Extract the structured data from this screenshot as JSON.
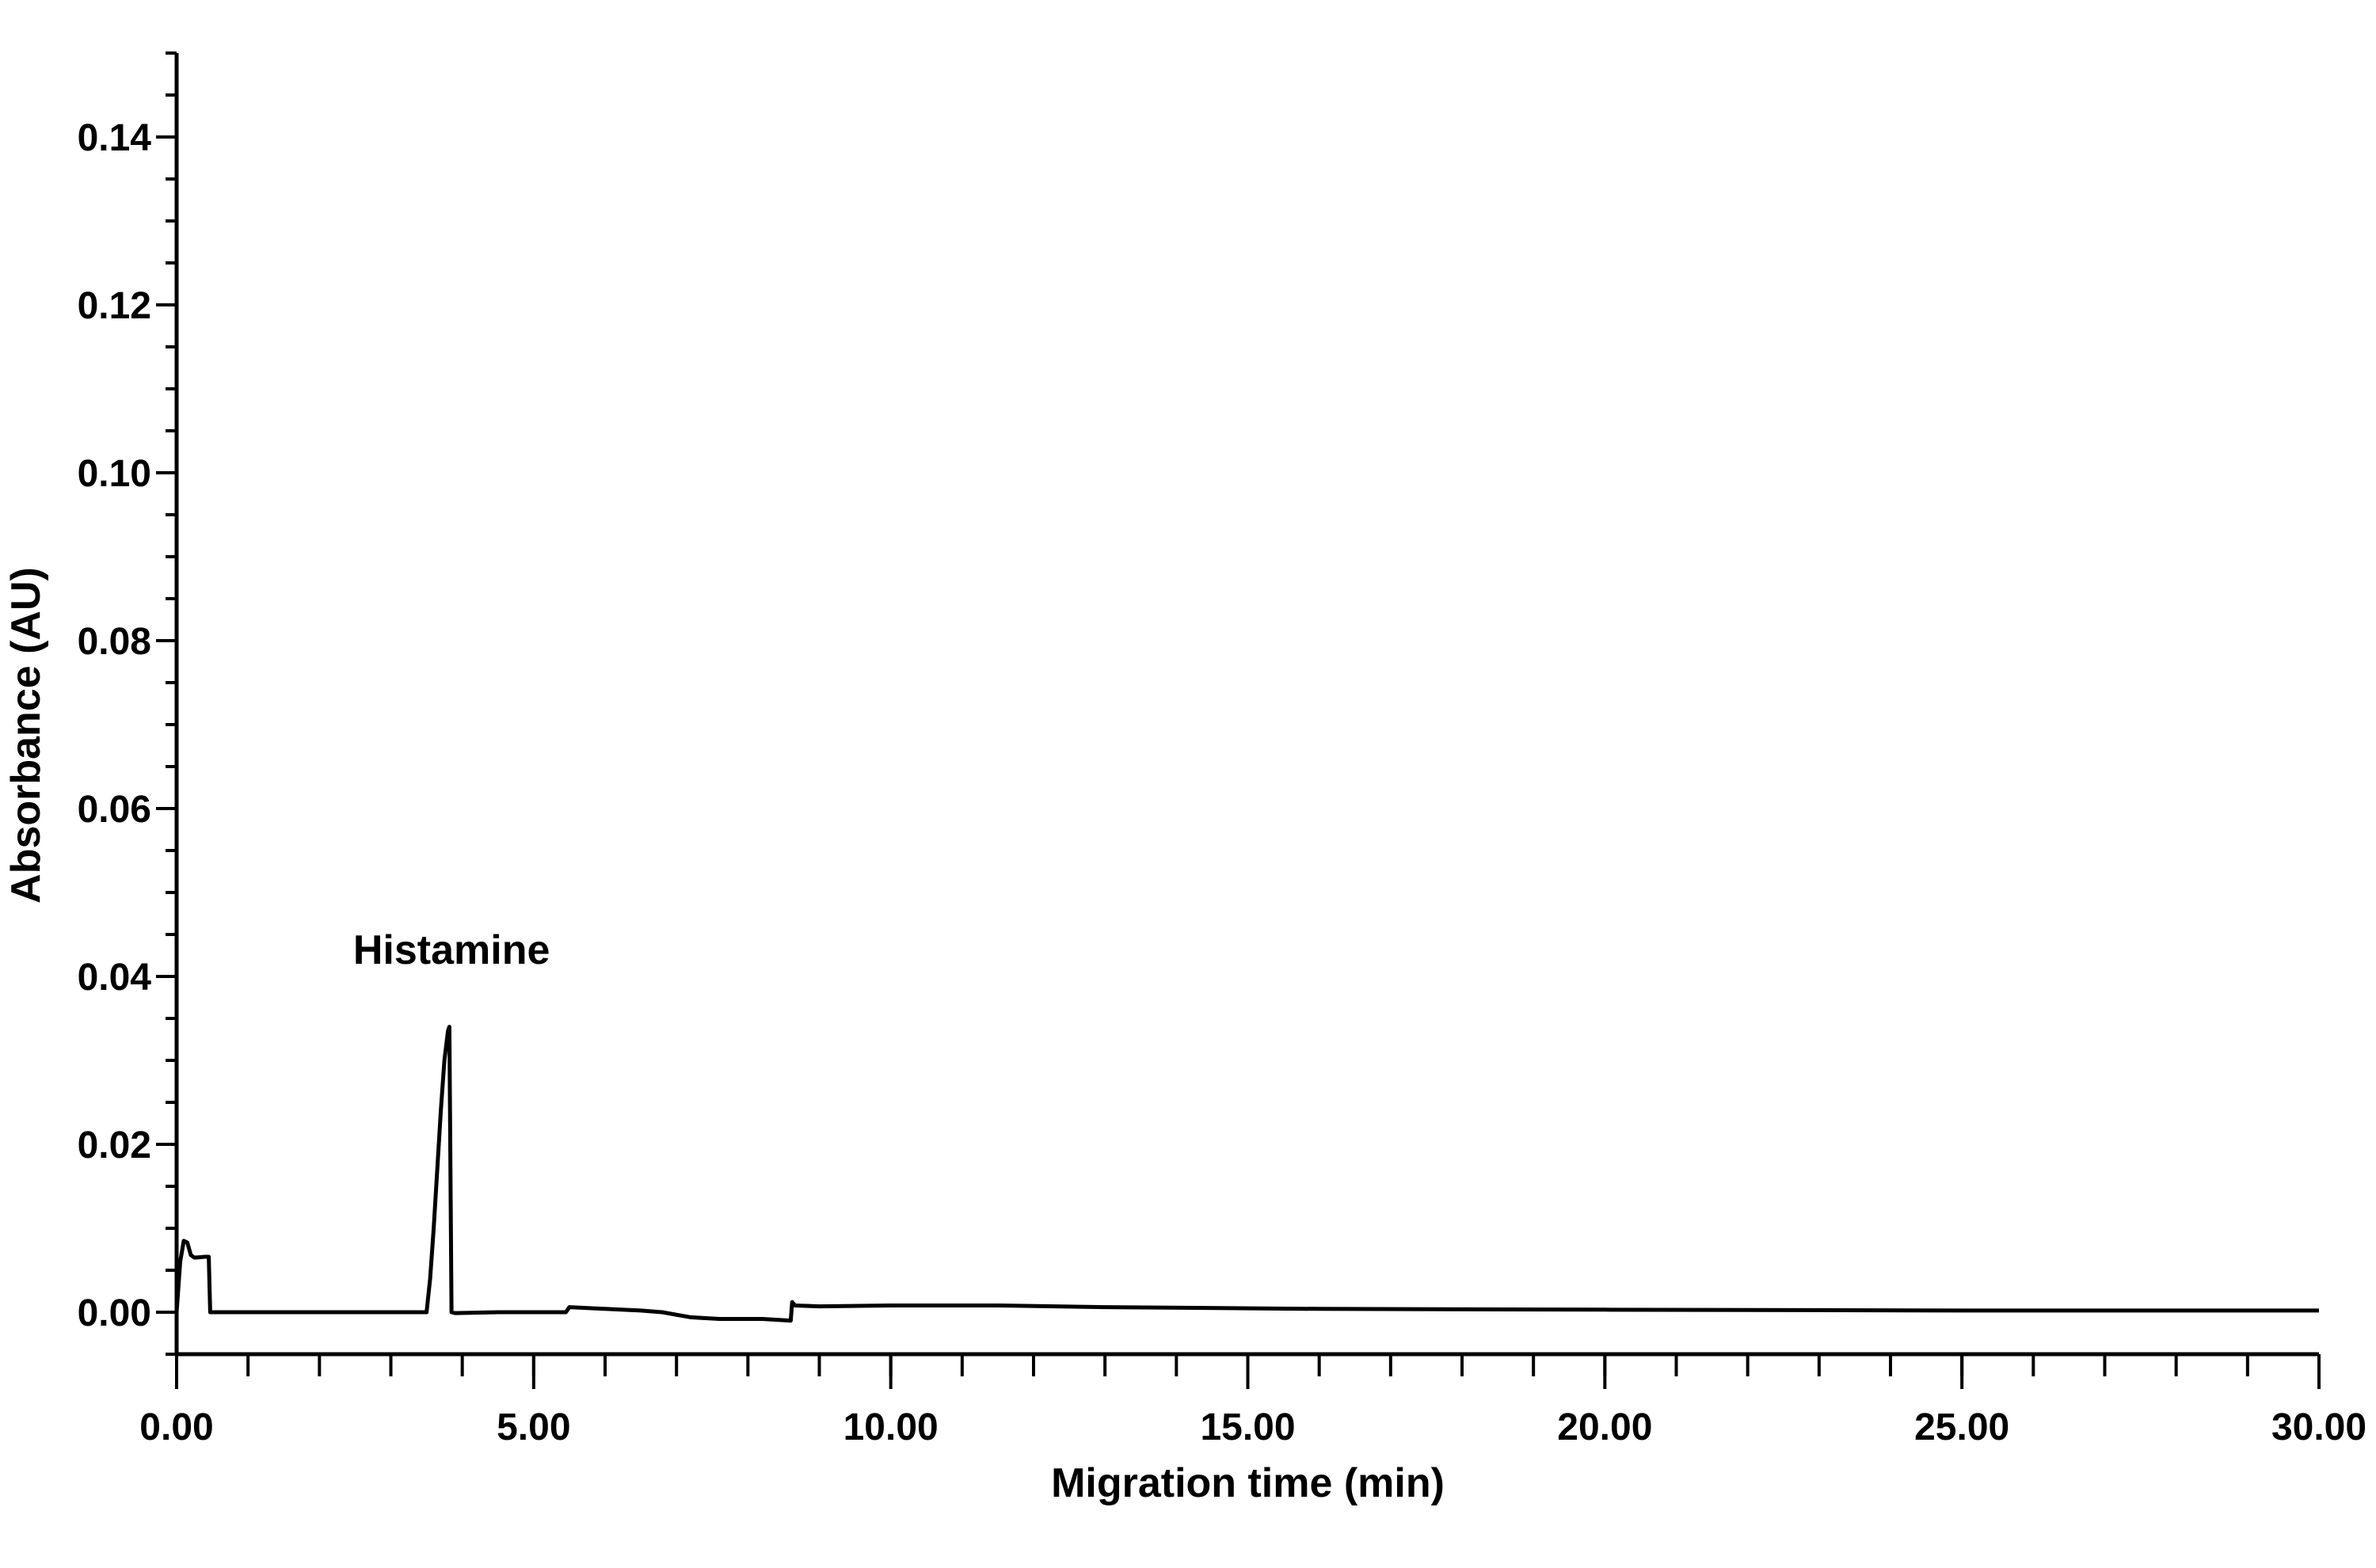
{
  "chart_data": {
    "type": "line",
    "xlabel": "Migration time (min)",
    "ylabel": "Absorbance (AU)",
    "xlim": [
      0,
      30
    ],
    "ylim": [
      -0.005,
      0.15
    ],
    "x_ticks": [
      0,
      5,
      10,
      15,
      20,
      25,
      30
    ],
    "x_tick_labels": [
      "0.00",
      "5.00",
      "10.00",
      "15.00",
      "20.00",
      "25.00",
      "30.00"
    ],
    "x_minor_step": 1,
    "y_ticks": [
      0,
      0.02,
      0.04,
      0.06,
      0.08,
      0.1,
      0.12,
      0.14
    ],
    "y_tick_labels": [
      "0.00",
      "0.02",
      "0.04",
      "0.06",
      "0.08",
      "0.10",
      "0.12",
      "0.14"
    ],
    "y_minor_step": 0.005,
    "grid": false,
    "series": [
      {
        "points": [
          [
            0.0,
            0.0
          ],
          [
            0.05,
            0.006
          ],
          [
            0.1,
            0.0085
          ],
          [
            0.15,
            0.0083
          ],
          [
            0.2,
            0.0068
          ],
          [
            0.25,
            0.0065
          ],
          [
            0.4,
            0.0066
          ],
          [
            0.45,
            0.0066
          ],
          [
            0.47,
            0.0
          ],
          [
            0.5,
            0.0
          ],
          [
            3.5,
            0.0
          ],
          [
            3.55,
            0.004
          ],
          [
            3.6,
            0.01
          ],
          [
            3.65,
            0.017
          ],
          [
            3.7,
            0.024
          ],
          [
            3.75,
            0.03
          ],
          [
            3.8,
            0.0335
          ],
          [
            3.82,
            0.034
          ],
          [
            3.85,
            0.0
          ],
          [
            3.9,
            -0.0001
          ],
          [
            4.5,
            0.0
          ],
          [
            5.45,
            0.0
          ],
          [
            5.5,
            0.0006
          ],
          [
            6.0,
            0.0004
          ],
          [
            6.5,
            0.0002
          ],
          [
            6.8,
            0.0
          ],
          [
            7.2,
            -0.0006
          ],
          [
            7.6,
            -0.0008
          ],
          [
            8.2,
            -0.0008
          ],
          [
            8.6,
            -0.001
          ],
          [
            8.62,
            0.0012
          ],
          [
            8.66,
            0.0008
          ],
          [
            9.0,
            0.0007
          ],
          [
            10.0,
            0.0008
          ],
          [
            11.5,
            0.0008
          ],
          [
            13.0,
            0.0006
          ],
          [
            16.0,
            0.0004
          ],
          [
            20.0,
            0.0003
          ],
          [
            25.0,
            0.0002
          ],
          [
            30.0,
            0.0002
          ]
        ]
      }
    ],
    "annotations": [
      {
        "text": "Histamine",
        "x": 3.85,
        "y": 0.0415
      }
    ]
  }
}
